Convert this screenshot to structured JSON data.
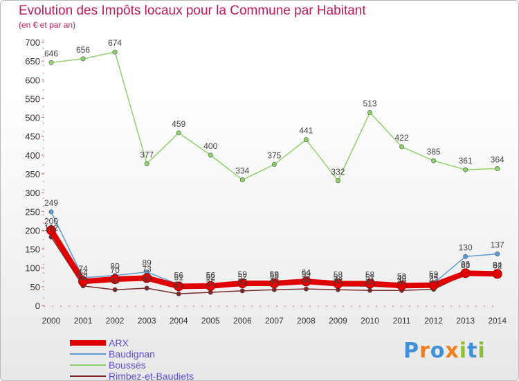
{
  "header": {
    "title": "Evolution des Impôts locaux pour la Commune par Habitant",
    "subtitle": "(en € et par an)"
  },
  "logo": {
    "text": "Proxiti",
    "colors": [
      "#3f8fd9",
      "#ef7d1a",
      "#3f8fd9",
      "#ef7d1a",
      "#8cbf2f",
      "#3f8fd9",
      "#8cbf2f"
    ]
  },
  "chart_data": {
    "type": "line",
    "x": [
      "2000",
      "2001",
      "2002",
      "2003",
      "2004",
      "2005",
      "2006",
      "2007",
      "2008",
      "2009",
      "2010",
      "2011",
      "2012",
      "2013",
      "2014"
    ],
    "ylim": [
      0,
      700
    ],
    "yticks": [
      0,
      50,
      100,
      150,
      200,
      250,
      300,
      350,
      400,
      450,
      500,
      550,
      600,
      650,
      700
    ],
    "grid": false,
    "legend": "bottom-left",
    "series": [
      {
        "name": "ARX",
        "color": "#e00000",
        "values": [
          200,
          64,
          70,
          73,
          51,
          52,
          59,
          59,
          64,
          58,
          58,
          53,
          54,
          86,
          84
        ],
        "labels": [
          "200",
          "64",
          "70",
          "73",
          "51",
          "52",
          "59",
          "59",
          "64",
          "58",
          "58",
          "53",
          "54",
          "86",
          "84"
        ]
      },
      {
        "name": "Baudignan",
        "color": "#5b9bd5",
        "values": [
          249,
          74,
          80,
          89,
          56,
          56,
          52,
          55,
          59,
          52,
          51,
          49,
          59,
          130,
          137
        ],
        "labels": [
          "249",
          "74",
          "80",
          "89",
          "56",
          "56",
          "52",
          "55",
          "59",
          "52",
          "51",
          "49",
          "59",
          "130",
          "137"
        ]
      },
      {
        "name": "Boussès",
        "color": "#8fd16c",
        "values": [
          646,
          656,
          674,
          377,
          459,
          400,
          334,
          375,
          441,
          332,
          513,
          422,
          385,
          361,
          364
        ],
        "labels": [
          "646",
          "656",
          "674",
          "377",
          "459",
          "400",
          "334",
          "375",
          "441",
          "332",
          "513",
          "422",
          "385",
          "361",
          "364"
        ]
      },
      {
        "name": "Rimbez-et-Baudiets",
        "color": "#7a2a2a",
        "values": [
          182,
          52,
          42,
          46,
          31,
          35,
          39,
          42,
          44,
          42,
          40,
          40,
          43,
          83,
          82
        ],
        "labels": [
          "182",
          "52",
          "42",
          "46",
          "31",
          "35",
          "39",
          "42",
          "44",
          "42",
          "40",
          "40",
          "43",
          "83",
          "82"
        ]
      }
    ]
  }
}
